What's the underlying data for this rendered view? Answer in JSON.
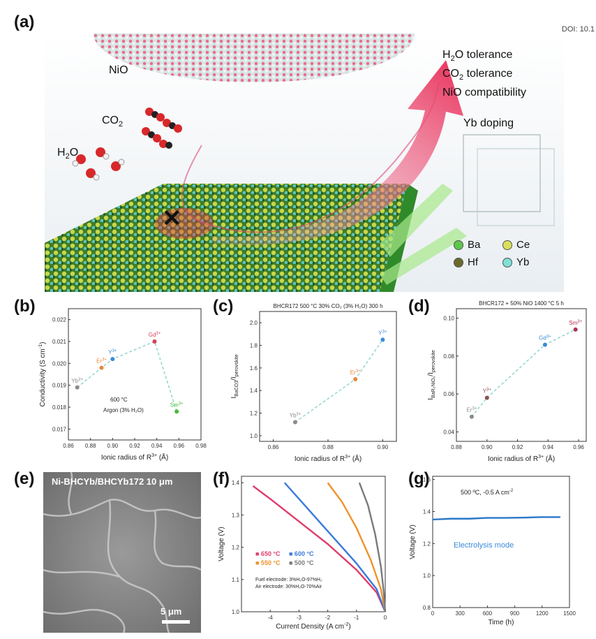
{
  "figure": {
    "doi": "DOI: 10.1",
    "panel_labels": {
      "a": "(a)",
      "b": "(b)",
      "c": "(c)",
      "d": "(d)",
      "e": "(e)",
      "f": "(f)",
      "g": "(g)"
    },
    "panel_a": {
      "nio_label": "NiO",
      "co2_label": "CO",
      "co2_sub": "2",
      "h2o_label_h": "H",
      "h2o_sub": "2",
      "h2o_label_o": "O",
      "tolerance_lines": [
        {
          "pre": "H",
          "sub": "2",
          "post": "O tolerance"
        },
        {
          "pre": "CO",
          "sub": "2",
          "post": " tolerance"
        },
        {
          "pre": "NiO compatibility",
          "sub": "",
          "post": ""
        }
      ],
      "yb_doping": "Yb doping",
      "legend": [
        {
          "symbol": "Ba",
          "color": "#5cc84a"
        },
        {
          "symbol": "Ce",
          "color": "#d9e05a"
        },
        {
          "symbol": "Hf",
          "color": "#6b6a2c"
        },
        {
          "symbol": "Yb",
          "color": "#7ee0d6"
        }
      ],
      "cross_mark": "✕"
    },
    "panel_e": {
      "title": "Ni-BHCYb/BHCYb172 10 μm",
      "scale_bar": "5 μm"
    }
  },
  "chart_data": [
    {
      "id": "b",
      "type": "scatter",
      "xlabel": "Ionic radius of R",
      "xlabel_sup": "3+",
      "xlabel_unit": " (Å)",
      "ylabel": "Conductivity (S cm",
      "ylabel_sup": "-1",
      "ylabel_end": ")",
      "xlim": [
        0.86,
        0.98
      ],
      "ylim": [
        0.0165,
        0.0225
      ],
      "xticks": [
        "0.86",
        "0.88",
        "0.90",
        "0.92",
        "0.94",
        "0.96",
        "0.98"
      ],
      "yticks": [
        "0.017",
        "0.018",
        "0.019",
        "0.020",
        "0.021",
        "0.022"
      ],
      "annotations": [
        "600 °C",
        "Argon (3% H₂O)"
      ],
      "points": [
        {
          "name": "Yb",
          "sup": "3+",
          "x": 0.868,
          "y": 0.0189,
          "color": "#8a8a8a"
        },
        {
          "name": "Er",
          "sup": "3+",
          "x": 0.89,
          "y": 0.0198,
          "color": "#e8883a"
        },
        {
          "name": "Y",
          "sup": "3+",
          "x": 0.9,
          "y": 0.0202,
          "color": "#3a8ad8"
        },
        {
          "name": "Gd",
          "sup": "3+",
          "x": 0.938,
          "y": 0.021,
          "color": "#d8405a"
        },
        {
          "name": "Sm",
          "sup": "3+",
          "x": 0.958,
          "y": 0.0178,
          "color": "#4aba3a"
        }
      ]
    },
    {
      "id": "c",
      "type": "scatter",
      "title": "BHCR172 500 °C 30% CO₂ (3% H₂O) 300 h",
      "xlabel": "Ionic radius of R",
      "xlabel_sup": "3+",
      "xlabel_unit": " (Å)",
      "ylabel": "I",
      "ylabel_sub1": "BaCO3",
      "ylabel_mid": "/I",
      "ylabel_sub2": "perovskite",
      "xlim": [
        0.855,
        0.905
      ],
      "ylim": [
        0.95,
        2.1
      ],
      "xticks": [
        "0.86",
        "0.88",
        "0.90"
      ],
      "yticks": [
        "1.0",
        "1.2",
        "1.4",
        "1.6",
        "1.8",
        "2.0"
      ],
      "points": [
        {
          "name": "Yb",
          "sup": "3+",
          "x": 0.868,
          "y": 1.12,
          "color": "#8a8a8a"
        },
        {
          "name": "Er",
          "sup": "3+",
          "x": 0.89,
          "y": 1.5,
          "color": "#e8883a"
        },
        {
          "name": "Y",
          "sup": "3+",
          "x": 0.9,
          "y": 1.85,
          "color": "#3a8ad8"
        }
      ]
    },
    {
      "id": "d",
      "type": "scatter",
      "title": "BHCR172 + 50% NiO 1400 °C 5 h",
      "xlabel": "Ionic radius of R",
      "xlabel_sup": "3+",
      "xlabel_unit": " (Å)",
      "ylabel": "I",
      "ylabel_sub1": "BaR₂NiO₅",
      "ylabel_mid": "/I",
      "ylabel_sub2": "perovskite",
      "xlim": [
        0.88,
        0.965
      ],
      "ylim": [
        0.035,
        0.105
      ],
      "xticks": [
        "0.88",
        "0.90",
        "0.92",
        "0.94",
        "0.96"
      ],
      "yticks": [
        "0.04",
        "0.06",
        "0.08",
        "0.10"
      ],
      "points": [
        {
          "name": "Er",
          "sup": "3+",
          "x": 0.89,
          "y": 0.048,
          "color": "#8a8a8a"
        },
        {
          "name": "Y",
          "sup": "3+",
          "x": 0.9,
          "y": 0.058,
          "color": "#8a5050"
        },
        {
          "name": "Gd",
          "sup": "3+",
          "x": 0.938,
          "y": 0.086,
          "color": "#3a8ad8"
        },
        {
          "name": "Sm",
          "sup": "3+",
          "x": 0.958,
          "y": 0.094,
          "color": "#b03050"
        }
      ]
    },
    {
      "id": "f",
      "type": "line",
      "xlabel": "Current Density (A cm",
      "xlabel_sup": "-2",
      "xlabel_end": ")",
      "ylabel": "Voltage (V)",
      "xlim": [
        -5,
        0
      ],
      "ylim": [
        1.0,
        1.42
      ],
      "xticks": [
        "-4",
        "-3",
        "-2",
        "-1",
        "0"
      ],
      "xtick_values": [
        -4,
        -3,
        -2,
        -1,
        0
      ],
      "yticks": [
        "1.0",
        "1.1",
        "1.2",
        "1.3",
        "1.4"
      ],
      "notes": [
        "Fuel electrode: 3%H₂O-97%H₂",
        "Air electrode: 30%H₂O-70%Air"
      ],
      "series": [
        {
          "name": "650 °C",
          "color": "#e03c6a",
          "x": [
            -4.6,
            -4.0,
            -3.0,
            -2.0,
            -1.0,
            -0.3,
            0
          ],
          "y": [
            1.39,
            1.35,
            1.28,
            1.21,
            1.13,
            1.06,
            1.0
          ]
        },
        {
          "name": "600 °C",
          "color": "#3a7ad8",
          "x": [
            -3.5,
            -3.0,
            -2.0,
            -1.0,
            -0.3,
            0
          ],
          "y": [
            1.4,
            1.35,
            1.25,
            1.15,
            1.07,
            1.0
          ]
        },
        {
          "name": "550 °C",
          "color": "#f0922a",
          "x": [
            -2.0,
            -1.5,
            -1.0,
            -0.5,
            -0.15,
            0
          ],
          "y": [
            1.4,
            1.34,
            1.26,
            1.16,
            1.07,
            1.0
          ]
        },
        {
          "name": "500 °C",
          "color": "#7a7a7a",
          "x": [
            -0.9,
            -0.6,
            -0.35,
            -0.15,
            -0.05,
            0
          ],
          "y": [
            1.4,
            1.33,
            1.24,
            1.14,
            1.06,
            1.0
          ]
        }
      ]
    },
    {
      "id": "g",
      "type": "line",
      "xlabel": "Time (h)",
      "ylabel": "Voltage (V)",
      "xlim": [
        0,
        1500
      ],
      "ylim": [
        0.8,
        1.62
      ],
      "xticks": [
        "0",
        "300",
        "600",
        "900",
        "1200",
        "1500"
      ],
      "xtick_values": [
        0,
        300,
        600,
        900,
        1200,
        1500
      ],
      "yticks": [
        "0.8",
        "1.0",
        "1.2",
        "1.4",
        "1.6"
      ],
      "annotation": "500 ºC, -0.5 A cm",
      "annotation_sup": "-2",
      "mode_label": "Electrolysis mode",
      "series": [
        {
          "color": "#2a78c8",
          "x": [
            0,
            200,
            400,
            600,
            800,
            1000,
            1200,
            1400
          ],
          "y": [
            1.35,
            1.355,
            1.355,
            1.36,
            1.36,
            1.362,
            1.365,
            1.365
          ]
        }
      ]
    }
  ]
}
